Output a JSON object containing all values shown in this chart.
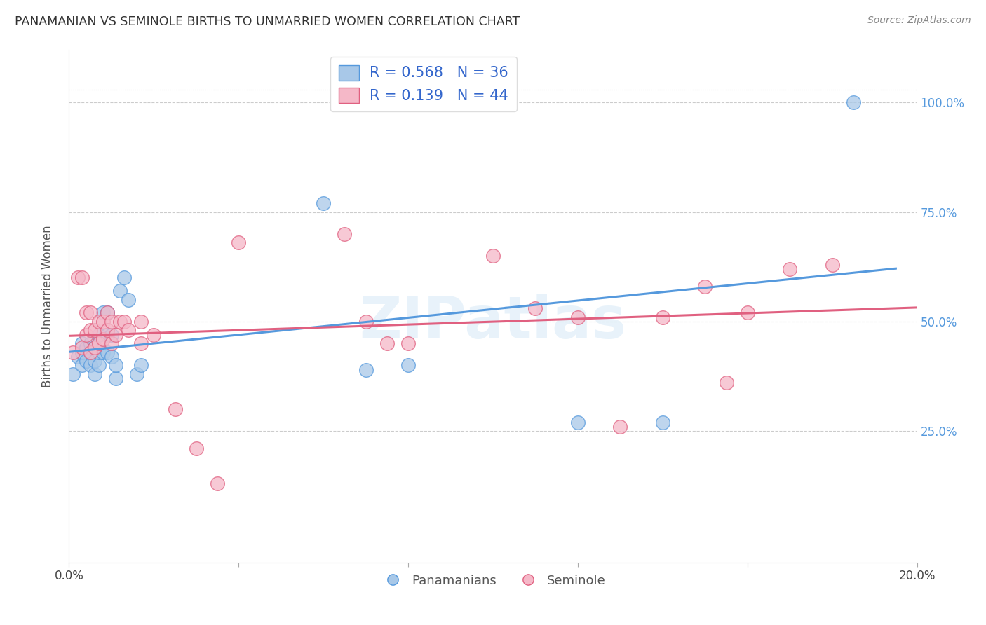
{
  "title": "PANAMANIAN VS SEMINOLE BIRTHS TO UNMARRIED WOMEN CORRELATION CHART",
  "source": "Source: ZipAtlas.com",
  "ylabel": "Births to Unmarried Women",
  "ytick_labels": [
    "25.0%",
    "50.0%",
    "75.0%",
    "100.0%"
  ],
  "ytick_values": [
    0.25,
    0.5,
    0.75,
    1.0
  ],
  "xlim": [
    0.0,
    0.2
  ],
  "ylim": [
    -0.05,
    1.12
  ],
  "legend_blue_R": "R = 0.568",
  "legend_blue_N": "N = 36",
  "legend_pink_R": "R = 0.139",
  "legend_pink_N": "N = 44",
  "legend_labels": [
    "Panamanians",
    "Seminole"
  ],
  "blue_color": "#a8c8e8",
  "pink_color": "#f5b8c8",
  "blue_line_color": "#5599dd",
  "pink_line_color": "#e06080",
  "watermark": "ZIPatlas",
  "blue_points_x": [
    0.001,
    0.002,
    0.003,
    0.003,
    0.003,
    0.004,
    0.004,
    0.005,
    0.005,
    0.005,
    0.006,
    0.006,
    0.006,
    0.007,
    0.007,
    0.007,
    0.008,
    0.008,
    0.009,
    0.009,
    0.009,
    0.01,
    0.01,
    0.011,
    0.011,
    0.012,
    0.013,
    0.014,
    0.016,
    0.017,
    0.06,
    0.07,
    0.08,
    0.12,
    0.14,
    0.185
  ],
  "blue_points_y": [
    0.38,
    0.42,
    0.4,
    0.43,
    0.45,
    0.41,
    0.44,
    0.4,
    0.43,
    0.45,
    0.38,
    0.41,
    0.44,
    0.4,
    0.43,
    0.47,
    0.43,
    0.52,
    0.43,
    0.47,
    0.52,
    0.42,
    0.47,
    0.37,
    0.4,
    0.57,
    0.6,
    0.55,
    0.38,
    0.4,
    0.77,
    0.39,
    0.4,
    0.27,
    0.27,
    1.0
  ],
  "pink_points_x": [
    0.001,
    0.002,
    0.003,
    0.003,
    0.004,
    0.004,
    0.005,
    0.005,
    0.005,
    0.006,
    0.006,
    0.007,
    0.007,
    0.008,
    0.008,
    0.009,
    0.009,
    0.01,
    0.01,
    0.011,
    0.012,
    0.013,
    0.014,
    0.017,
    0.017,
    0.02,
    0.025,
    0.03,
    0.035,
    0.04,
    0.065,
    0.07,
    0.075,
    0.08,
    0.1,
    0.11,
    0.12,
    0.13,
    0.14,
    0.15,
    0.155,
    0.16,
    0.17,
    0.18
  ],
  "pink_points_y": [
    0.43,
    0.6,
    0.44,
    0.6,
    0.47,
    0.52,
    0.43,
    0.48,
    0.52,
    0.44,
    0.48,
    0.45,
    0.5,
    0.46,
    0.5,
    0.48,
    0.52,
    0.45,
    0.5,
    0.47,
    0.5,
    0.5,
    0.48,
    0.45,
    0.5,
    0.47,
    0.3,
    0.21,
    0.13,
    0.68,
    0.7,
    0.5,
    0.45,
    0.45,
    0.65,
    0.53,
    0.51,
    0.26,
    0.51,
    0.58,
    0.36,
    0.52,
    0.62,
    0.63
  ]
}
